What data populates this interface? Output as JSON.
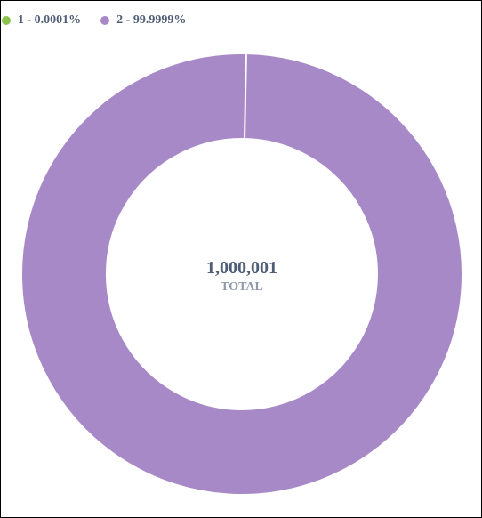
{
  "chart_data": {
    "type": "pie",
    "donut": true,
    "legend_position": "top-left",
    "categories": [
      "1",
      "2"
    ],
    "values": [
      1,
      1000000
    ],
    "legend": [
      {
        "label": "1 - 0.0001%",
        "color": "#8bc34a"
      },
      {
        "label": "2 - 99.9999%",
        "color": "#a889c8"
      }
    ],
    "center_value": "1,000,001",
    "center_label": "TOTAL"
  }
}
